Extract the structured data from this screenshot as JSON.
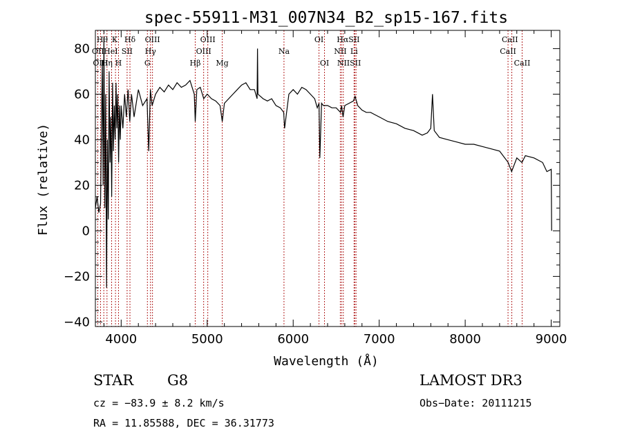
{
  "chart_data": {
    "type": "line",
    "title": "spec-55911-M31_007N34_B2_sp15-167.fits",
    "xlabel": "Wavelength (Å)",
    "ylabel": "Flux (relative)",
    "xlim": [
      3700,
      9100
    ],
    "ylim": [
      -42,
      88
    ],
    "xticks": [
      4000,
      5000,
      6000,
      7000,
      8000,
      9000
    ],
    "yticks": [
      -40,
      -20,
      0,
      20,
      40,
      60,
      80
    ],
    "grid": false,
    "series": [
      {
        "name": "flux",
        "x": [
          3700,
          3720,
          3740,
          3760,
          3780,
          3790,
          3800,
          3810,
          3820,
          3830,
          3840,
          3850,
          3860,
          3870,
          3880,
          3890,
          3900,
          3910,
          3920,
          3930,
          3940,
          3950,
          3960,
          3970,
          3980,
          3990,
          4000,
          4020,
          4040,
          4060,
          4080,
          4100,
          4120,
          4150,
          4200,
          4250,
          4300,
          4320,
          4340,
          4360,
          4400,
          4450,
          4500,
          4550,
          4600,
          4650,
          4700,
          4750,
          4800,
          4850,
          4861,
          4880,
          4920,
          4960,
          5000,
          5050,
          5100,
          5150,
          5175,
          5200,
          5250,
          5300,
          5350,
          5400,
          5450,
          5500,
          5550,
          5580,
          5585,
          5590,
          5650,
          5700,
          5750,
          5800,
          5850,
          5890,
          5900,
          5950,
          6000,
          6050,
          6100,
          6150,
          6200,
          6250,
          6280,
          6300,
          6310,
          6330,
          6350,
          6400,
          6450,
          6500,
          6550,
          6563,
          6580,
          6600,
          6650,
          6700,
          6720,
          6750,
          6800,
          6850,
          6900,
          6950,
          7000,
          7100,
          7200,
          7300,
          7400,
          7500,
          7560,
          7600,
          7620,
          7640,
          7700,
          7800,
          7900,
          8000,
          8100,
          8200,
          8300,
          8400,
          8500,
          8540,
          8600,
          8660,
          8700,
          8800,
          8900,
          8950,
          9000,
          9005
        ],
        "values": [
          10,
          15,
          8,
          12,
          75,
          20,
          85,
          10,
          60,
          -25,
          40,
          5,
          70,
          30,
          50,
          15,
          65,
          35,
          55,
          40,
          65,
          45,
          60,
          30,
          55,
          40,
          55,
          45,
          60,
          50,
          62,
          48,
          60,
          50,
          62,
          55,
          58,
          35,
          62,
          55,
          60,
          63,
          61,
          64,
          62,
          65,
          63,
          64,
          66,
          60,
          48,
          62,
          63,
          58,
          60,
          58,
          57,
          55,
          48,
          56,
          58,
          60,
          62,
          64,
          65,
          62,
          62,
          58,
          80,
          60,
          58,
          57,
          58,
          55,
          54,
          52,
          45,
          60,
          62,
          60,
          63,
          62,
          60,
          58,
          54,
          56,
          32,
          56,
          55,
          55,
          54,
          54,
          52,
          55,
          50,
          55,
          56,
          57,
          59,
          55,
          53,
          52,
          52,
          51,
          50,
          48,
          47,
          45,
          44,
          42,
          43,
          45,
          60,
          44,
          41,
          40,
          39,
          38,
          38,
          37,
          36,
          35,
          30,
          26,
          32,
          30,
          33,
          32,
          30,
          26,
          27,
          0
        ]
      }
    ],
    "lines": [
      {
        "name": "Hθ",
        "wl": 3798
      },
      {
        "name": "OII",
        "wl": 3727
      },
      {
        "name": "OIII",
        "wl": 3760
      },
      {
        "name": "Hη",
        "wl": 3835
      },
      {
        "name": "HeI",
        "wl": 3889
      },
      {
        "name": "K",
        "wl": 3934
      },
      {
        "name": "H",
        "wl": 3969
      },
      {
        "name": "SII",
        "wl": 4069
      },
      {
        "name": "Hδ",
        "wl": 4102
      },
      {
        "name": "G",
        "wl": 4305
      },
      {
        "name": "Hγ",
        "wl": 4341
      },
      {
        "name": "OIII",
        "wl": 4364
      },
      {
        "name": "Hβ",
        "wl": 4861
      },
      {
        "name": "OIII",
        "wl": 4959
      },
      {
        "name": "OIII",
        "wl": 5007
      },
      {
        "name": "Mg",
        "wl": 5175
      },
      {
        "name": "Na",
        "wl": 5893
      },
      {
        "name": "OI",
        "wl": 6300
      },
      {
        "name": "OI",
        "wl": 6364
      },
      {
        "name": "NII",
        "wl": 6548
      },
      {
        "name": "Hα",
        "wl": 6563
      },
      {
        "name": "NII",
        "wl": 6583
      },
      {
        "name": "Li",
        "wl": 6708
      },
      {
        "name": "SII",
        "wl": 6716
      },
      {
        "name": "SII",
        "wl": 6731
      },
      {
        "name": "CaII",
        "wl": 8498
      },
      {
        "name": "CaII",
        "wl": 8542
      },
      {
        "name": "CaII",
        "wl": 8662
      }
    ],
    "labels": [
      {
        "text": "Hθ",
        "wl": 3780,
        "row": 0
      },
      {
        "text": "K",
        "wl": 3925,
        "row": 0
      },
      {
        "text": "Hδ",
        "wl": 4102,
        "row": 0
      },
      {
        "text": "OIII",
        "wl": 4364,
        "row": 0
      },
      {
        "text": "OIII",
        "wl": 5007,
        "row": 0
      },
      {
        "text": "OI",
        "wl": 6300,
        "row": 0
      },
      {
        "text": "HαSII",
        "wl": 6640,
        "row": 0
      },
      {
        "text": "CaII",
        "wl": 8520,
        "row": 0
      },
      {
        "text": "OII",
        "wl": 3730,
        "row": 1
      },
      {
        "text": "HeI",
        "wl": 3880,
        "row": 1
      },
      {
        "text": "SII",
        "wl": 4069,
        "row": 1
      },
      {
        "text": "Hγ",
        "wl": 4341,
        "row": 1
      },
      {
        "text": "OIII",
        "wl": 4959,
        "row": 1
      },
      {
        "text": "Na",
        "wl": 5893,
        "row": 1
      },
      {
        "text": "NII",
        "wl": 6548,
        "row": 1
      },
      {
        "text": "Li",
        "wl": 6708,
        "row": 1
      },
      {
        "text": "CaII",
        "wl": 8498,
        "row": 1
      },
      {
        "text": "OIII",
        "wl": 3760,
        "row": 2
      },
      {
        "text": "Hη",
        "wl": 3835,
        "row": 2
      },
      {
        "text": "H",
        "wl": 3969,
        "row": 2
      },
      {
        "text": "G",
        "wl": 4305,
        "row": 2
      },
      {
        "text": "Hβ",
        "wl": 4861,
        "row": 2
      },
      {
        "text": "Mg",
        "wl": 5175,
        "row": 2
      },
      {
        "text": "OI",
        "wl": 6364,
        "row": 2
      },
      {
        "text": "NIISII",
        "wl": 6650,
        "row": 2
      },
      {
        "text": "CaII",
        "wl": 8662,
        "row": 2
      }
    ]
  },
  "info": {
    "class": "STAR",
    "subclass": "G8",
    "survey": "LAMOST DR3",
    "cz": "cz = −83.9 ± 8.2 km/s",
    "obs_date": "Obs−Date: 20111215",
    "radec": "RA =  11.85588, DEC =  36.31773"
  }
}
